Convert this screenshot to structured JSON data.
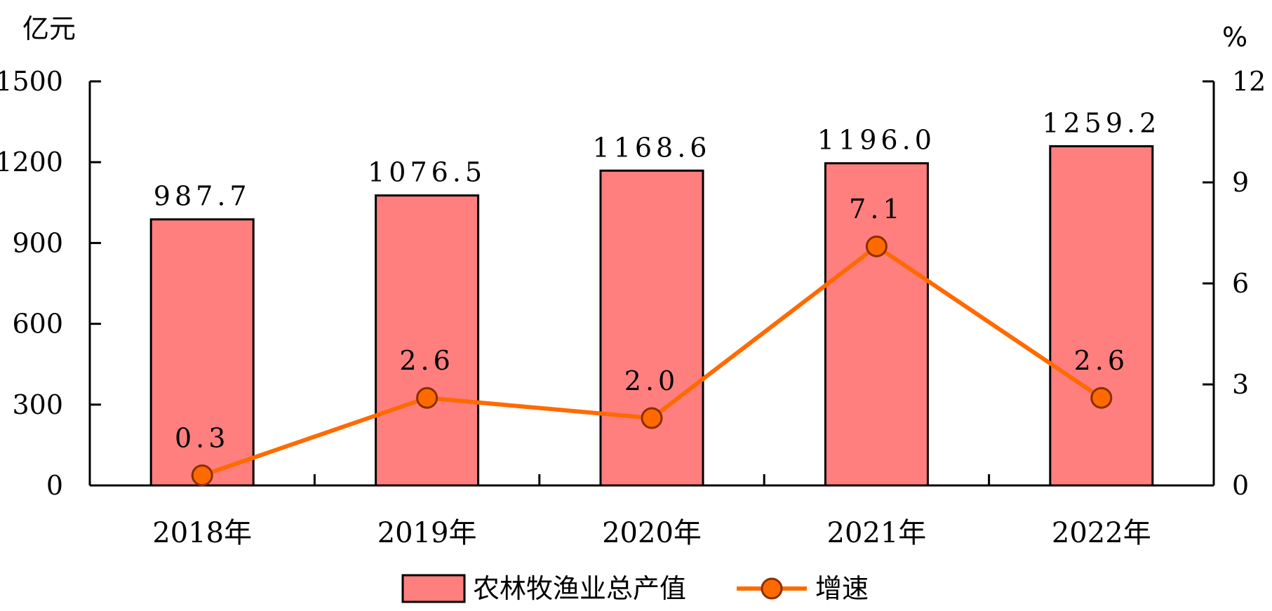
{
  "chart_data": {
    "type": "bar",
    "categories": [
      "2018年",
      "2019年",
      "2020年",
      "2021年",
      "2022年"
    ],
    "series": [
      {
        "name": "农林牧渔业总产值",
        "type": "bar",
        "axis": "left",
        "values": [
          987.7,
          1076.5,
          1168.6,
          1196.0,
          1259.2
        ],
        "labels": [
          "987.7",
          "1076.5",
          "1168.6",
          "1196.0",
          "1259.2"
        ],
        "color": "#FF7F7F"
      },
      {
        "name": "增速",
        "type": "line",
        "axis": "right",
        "values": [
          0.3,
          2.6,
          2.0,
          7.1,
          2.6
        ],
        "labels": [
          "0.3",
          "2.6",
          "2.0",
          "7.1",
          "2.6"
        ],
        "color": "#FF6A00"
      }
    ],
    "y_left": {
      "unit": "亿元",
      "range": [
        0,
        1500
      ],
      "ticks": [
        "0",
        "300",
        "600",
        "900",
        "1200",
        "1500"
      ]
    },
    "y_right": {
      "unit": "%",
      "range": [
        0,
        12
      ],
      "ticks": [
        "0",
        "3",
        "6",
        "9",
        "12"
      ]
    },
    "legend_position": "bottom",
    "grid": false
  }
}
